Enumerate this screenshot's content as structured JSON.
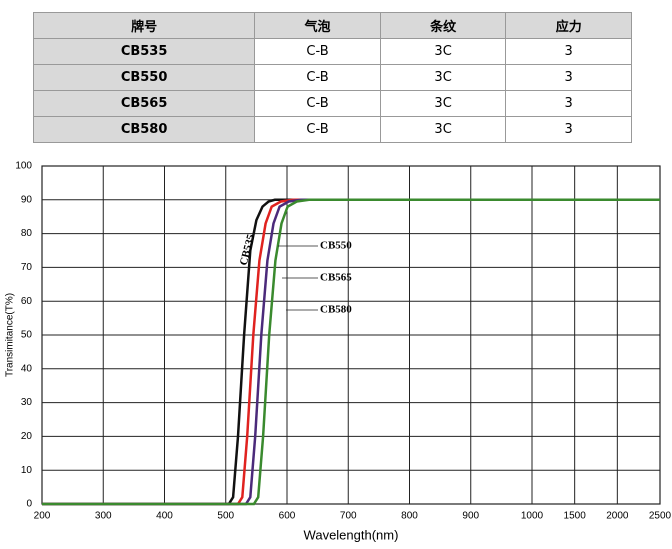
{
  "table": {
    "header": [
      "牌号",
      "气泡",
      "条纹",
      "应力"
    ],
    "rows": [
      [
        "CB535",
        "C-B",
        "3C",
        "3"
      ],
      [
        "CB550",
        "C-B",
        "3C",
        "3"
      ],
      [
        "CB565",
        "C-B",
        "3C",
        "3"
      ],
      [
        "CB580",
        "C-B",
        "3C",
        "3"
      ]
    ]
  },
  "chart_data": {
    "type": "line",
    "x_label": "Wavelength(nm)",
    "y_label": "Transimitance(T%)",
    "xlim": [
      200,
      2500
    ],
    "ylim": [
      0,
      100
    ],
    "xticks": [
      200,
      300,
      400,
      500,
      600,
      700,
      800,
      900,
      1000,
      1500,
      2000,
      2500
    ],
    "yticks": [
      0,
      10,
      20,
      30,
      40,
      50,
      60,
      70,
      80,
      90,
      100
    ],
    "grid": true,
    "series": [
      {
        "name": "CB535",
        "color": "#111111",
        "x": [
          200,
          505,
          512,
          520,
          530,
          540,
          550,
          560,
          570,
          580,
          600,
          2500
        ],
        "values": [
          0,
          0,
          2,
          20,
          50,
          75,
          84,
          88,
          89.5,
          90,
          90,
          90
        ]
      },
      {
        "name": "CB550",
        "color": "#e0221f",
        "x": [
          200,
          520,
          527,
          535,
          545,
          555,
          565,
          575,
          590,
          610,
          2500
        ],
        "values": [
          0,
          0,
          2,
          20,
          50,
          72,
          83,
          88,
          89.5,
          90,
          90
        ]
      },
      {
        "name": "CB565",
        "color": "#4b2a7a",
        "x": [
          200,
          533,
          540,
          548,
          558,
          568,
          578,
          588,
          603,
          623,
          2500
        ],
        "values": [
          0,
          0,
          2,
          20,
          50,
          72,
          83,
          88,
          89.5,
          90,
          90
        ]
      },
      {
        "name": "CB580",
        "color": "#3a8a2e",
        "x": [
          200,
          546,
          553,
          561,
          571,
          581,
          591,
          601,
          616,
          636,
          2500
        ],
        "values": [
          0,
          0,
          2,
          20,
          50,
          72,
          83,
          88,
          89.5,
          90,
          90
        ]
      }
    ]
  }
}
